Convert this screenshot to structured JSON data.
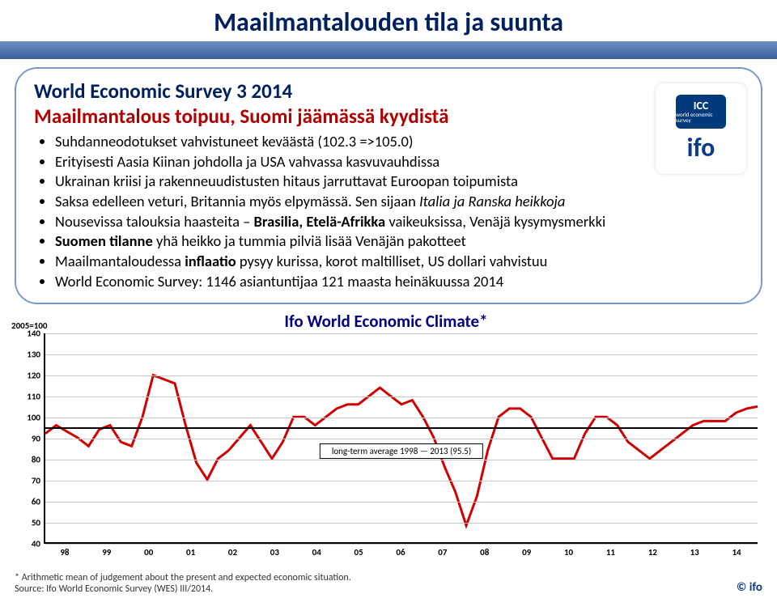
{
  "title": "Maailmantalouden tila ja suunta",
  "survey_title": "World Economic Survey 3 2014",
  "subtitle": "Maailmantalous toipuu, Suomi jäämässä kyydistä",
  "bullets": [
    {
      "pre": "Suhdanneodotukset vahvistuneet keväästä (102.3 =>105.0)"
    },
    {
      "pre": "Erityisesti Aasia Kiinan johdolla ja USA vahvassa kasvuvauhdissa"
    },
    {
      "pre": "Ukrainan kriisi ja rakenneuudistusten hitaus jarruttavat Euroopan toipumista"
    },
    {
      "pre": "Saksa edelleen veturi, Britannia myös elpymässä. Sen sijaan ",
      "it1": "Italia ja Ranska heikkoja"
    },
    {
      "pre": "Nousevissa talouksia haasteita – ",
      "bold": "Brasilia, Etelä-Afrikka ",
      "post": "vaikeuksissa, Venäjä kysymysmerkki"
    },
    {
      "bold2": "Suomen tilanne ",
      "post2": "yhä heikko ja tummia pilviä lisää Venäjän pakotteet"
    },
    {
      "pre": "Maailmantaloudessa ",
      "bold": "inflaatio ",
      "post": "pysyy kurissa, korot maltilliset, US dollari vahvistuu"
    },
    {
      "pre": "World Economic Survey: 1146 asiantuntijaa 121 maasta heinäkuussa 2014"
    }
  ],
  "logo": {
    "top": "ICC",
    "sub": "world\neconomic\nsurvey",
    "bottom": "ifo"
  },
  "chart": {
    "title": "Ifo World Economic Climate*",
    "y_label": "2005=100",
    "ymin": 40,
    "ymax": 140,
    "ystep": 10,
    "xlabels": [
      "98",
      "99",
      "00",
      "01",
      "02",
      "03",
      "04",
      "05",
      "06",
      "07",
      "08",
      "09",
      "10",
      "11",
      "12",
      "13",
      "14"
    ],
    "avg_value": 95.5,
    "avg_label": "long-term average 1998 — 2013 (95.5)",
    "line_color": "#d00000",
    "grid_color": "#c8c8d0",
    "data": [
      92,
      96,
      93,
      90,
      86,
      94,
      96,
      88,
      86,
      100,
      120,
      118,
      116,
      96,
      78,
      70,
      80,
      84,
      90,
      96,
      88,
      80,
      88,
      100,
      100,
      96,
      100,
      104,
      106,
      106,
      110,
      114,
      110,
      106,
      108,
      100,
      90,
      76,
      64,
      48,
      62,
      84,
      100,
      104,
      104,
      100,
      90,
      80,
      80,
      80,
      92,
      100,
      100,
      96,
      88,
      84,
      80,
      84,
      88,
      92,
      96,
      98,
      98,
      98,
      102,
      104,
      105
    ],
    "footnote": "* Arithmetic mean of judgement about the present and expected economic situation.",
    "source": "Source: Ifo World Economic Survey (WES) III/2014.",
    "copy": "© ifo"
  }
}
